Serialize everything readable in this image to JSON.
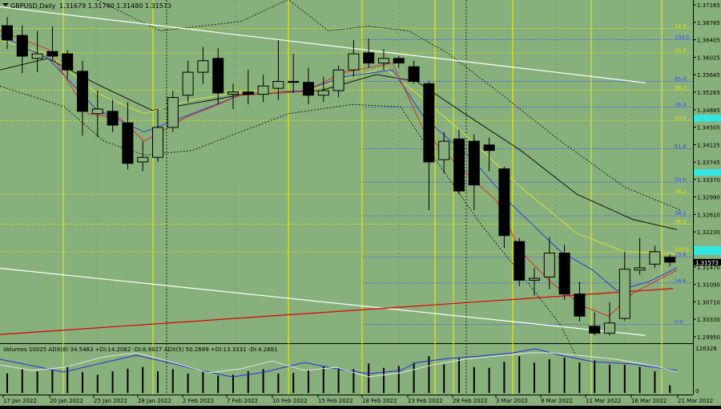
{
  "header": {
    "symbol_label": "GBPUSD,Daily",
    "ohlc": "1.31679 1.31740 1.31480 1.31573"
  },
  "volume_panel": {
    "label": "Volumes 10025 ADX(8) 34.5483 +DI:14.2082 -DI:8.9827 ADX(5) 50.2689 +DI:13.3331 -DI:4.2681",
    "scale_top": "128328",
    "scale_bottom": "0"
  },
  "chart_data": {
    "type": "candlestick",
    "title": "GBPUSD,Daily",
    "price_range": [
      1.2955,
      1.3728
    ],
    "price_ticks": [
      "1.37165",
      "1.36785",
      "1.36405",
      "1.36025",
      "1.35645",
      "1.35265",
      "1.34885",
      "1.34505",
      "1.34125",
      "1.33745",
      "1.33370",
      "1.32990",
      "1.32610",
      "1.32230",
      "1.31850",
      "1.31470",
      "1.31090",
      "1.30710",
      "1.30330",
      "1.29950"
    ],
    "current_price": "1.31573",
    "date_labels": [
      "17 Jan 2022",
      "20 Jan 2022",
      "25 Jan 2022",
      "28 Jan 2022",
      "2 Feb 2022",
      "7 Feb 2022",
      "10 Feb 2022",
      "15 Feb 2022",
      "18 Feb 2022",
      "23 Feb 2022",
      "28 Feb 2022",
      "3 Mar 2022",
      "8 Mar 2022",
      "11 Mar 2022",
      "16 Mar 2022",
      "21 Mar 2022"
    ],
    "candles": [
      {
        "o": 1.3671,
        "h": 1.369,
        "l": 1.362,
        "c": 1.364
      },
      {
        "o": 1.365,
        "h": 1.3672,
        "l": 1.3568,
        "c": 1.3605
      },
      {
        "o": 1.36,
        "h": 1.366,
        "l": 1.357,
        "c": 1.361
      },
      {
        "o": 1.3615,
        "h": 1.367,
        "l": 1.3595,
        "c": 1.3605
      },
      {
        "o": 1.361,
        "h": 1.3618,
        "l": 1.3558,
        "c": 1.3575
      },
      {
        "o": 1.3572,
        "h": 1.3595,
        "l": 1.3432,
        "c": 1.3485
      },
      {
        "o": 1.348,
        "h": 1.353,
        "l": 1.343,
        "c": 1.349
      },
      {
        "o": 1.3485,
        "h": 1.351,
        "l": 1.344,
        "c": 1.3455
      },
      {
        "o": 1.346,
        "h": 1.3505,
        "l": 1.3359,
        "c": 1.3372
      },
      {
        "o": 1.3375,
        "h": 1.342,
        "l": 1.3355,
        "c": 1.3385
      },
      {
        "o": 1.3385,
        "h": 1.349,
        "l": 1.3375,
        "c": 1.345
      },
      {
        "o": 1.345,
        "h": 1.353,
        "l": 1.344,
        "c": 1.3515
      },
      {
        "o": 1.352,
        "h": 1.3595,
        "l": 1.3505,
        "c": 1.357
      },
      {
        "o": 1.357,
        "h": 1.3625,
        "l": 1.3545,
        "c": 1.3595
      },
      {
        "o": 1.36,
        "h": 1.3622,
        "l": 1.35,
        "c": 1.3525
      },
      {
        "o": 1.3522,
        "h": 1.3545,
        "l": 1.349,
        "c": 1.3527
      },
      {
        "o": 1.3527,
        "h": 1.3575,
        "l": 1.35,
        "c": 1.3522
      },
      {
        "o": 1.3522,
        "h": 1.3565,
        "l": 1.3505,
        "c": 1.354
      },
      {
        "o": 1.3535,
        "h": 1.364,
        "l": 1.351,
        "c": 1.355
      },
      {
        "o": 1.355,
        "h": 1.361,
        "l": 1.3525,
        "c": 1.3548
      },
      {
        "o": 1.3548,
        "h": 1.358,
        "l": 1.35,
        "c": 1.352
      },
      {
        "o": 1.352,
        "h": 1.356,
        "l": 1.3505,
        "c": 1.353
      },
      {
        "o": 1.353,
        "h": 1.3585,
        "l": 1.3515,
        "c": 1.3575
      },
      {
        "o": 1.3575,
        "h": 1.364,
        "l": 1.356,
        "c": 1.361
      },
      {
        "o": 1.3612,
        "h": 1.3643,
        "l": 1.358,
        "c": 1.359
      },
      {
        "o": 1.359,
        "h": 1.362,
        "l": 1.3575,
        "c": 1.36
      },
      {
        "o": 1.36,
        "h": 1.3605,
        "l": 1.358,
        "c": 1.359
      },
      {
        "o": 1.3582,
        "h": 1.3595,
        "l": 1.3545,
        "c": 1.355
      },
      {
        "o": 1.3545,
        "h": 1.355,
        "l": 1.327,
        "c": 1.3375
      },
      {
        "o": 1.338,
        "h": 1.344,
        "l": 1.335,
        "c": 1.342
      },
      {
        "o": 1.3425,
        "h": 1.3445,
        "l": 1.3305,
        "c": 1.3312
      },
      {
        "o": 1.342,
        "h": 1.3435,
        "l": 1.327,
        "c": 1.3325
      },
      {
        "o": 1.3412,
        "h": 1.3428,
        "l": 1.3355,
        "c": 1.34
      },
      {
        "o": 1.336,
        "h": 1.3365,
        "l": 1.3188,
        "c": 1.3215
      },
      {
        "o": 1.3202,
        "h": 1.321,
        "l": 1.3105,
        "c": 1.3118
      },
      {
        "o": 1.3118,
        "h": 1.3145,
        "l": 1.3085,
        "c": 1.3122
      },
      {
        "o": 1.3125,
        "h": 1.3212,
        "l": 1.3098,
        "c": 1.3177
      },
      {
        "o": 1.3177,
        "h": 1.3195,
        "l": 1.3075,
        "c": 1.3088
      },
      {
        "o": 1.3088,
        "h": 1.3115,
        "l": 1.3028,
        "c": 1.304
      },
      {
        "o": 1.3018,
        "h": 1.3048,
        "l": 1.2998,
        "c": 1.3003
      },
      {
        "o": 1.3003,
        "h": 1.307,
        "l": 1.2998,
        "c": 1.3025
      },
      {
        "o": 1.3035,
        "h": 1.318,
        "l": 1.303,
        "c": 1.3142
      },
      {
        "o": 1.314,
        "h": 1.321,
        "l": 1.313,
        "c": 1.3145
      },
      {
        "o": 1.3153,
        "h": 1.3193,
        "l": 1.3145,
        "c": 1.318
      },
      {
        "o": 1.3168,
        "h": 1.3174,
        "l": 1.3148,
        "c": 1.31573
      }
    ],
    "fib_levels": [
      {
        "label": "100.0",
        "price": 1.3641,
        "color": "#3a44ff"
      },
      {
        "label": "85.4",
        "price": 1.355,
        "color": "#3a44ff"
      },
      {
        "label": "76.4",
        "price": 1.3494,
        "color": "#3a44ff"
      },
      {
        "label": "61.8",
        "price": 1.3404,
        "color": "#3a44ff"
      },
      {
        "label": "50.0",
        "price": 1.3331,
        "color": "#3a44ff"
      },
      {
        "label": "38.2",
        "price": 1.3258,
        "color": "#3a44ff"
      },
      {
        "label": "23.6",
        "price": 1.3168,
        "color": "#3a44ff"
      },
      {
        "label": "14.6",
        "price": 1.3112,
        "color": "#3a44ff"
      },
      {
        "label": "0.0",
        "price": 1.3022,
        "color": "#3a44ff"
      },
      {
        "label": "14.6",
        "price": 1.3665,
        "color": "#e6e600"
      },
      {
        "label": "23.6",
        "price": 1.3612,
        "color": "#e6e600"
      },
      {
        "label": "38.2",
        "price": 1.3531,
        "color": "#e6e600"
      },
      {
        "label": "50.0",
        "price": 1.3465,
        "color": "#e6e600"
      },
      {
        "label": "38.2",
        "price": 1.3305,
        "color": "#e6e600"
      },
      {
        "label": "38.2",
        "price": 1.324,
        "color": "#e6e600"
      },
      {
        "label": "100.0",
        "price": 1.318,
        "color": "#e6e600"
      }
    ],
    "cyan_markers": [
      1.3185,
      1.347,
      1.3352,
      1.318
    ],
    "trendlines": [
      {
        "color": "#ffffff",
        "from": [
          0,
          1.3712
        ],
        "to": [
          806,
          1.3547
        ]
      },
      {
        "color": "#ffffff",
        "from": [
          0,
          1.3144
        ],
        "to": [
          806,
          1.2998
        ]
      },
      {
        "color": "#e00000",
        "from": [
          0,
          1.3
        ],
        "to": [
          840,
          1.31
        ]
      }
    ],
    "volumes": [
      0.45,
      0.55,
      0.5,
      0.52,
      0.6,
      0.48,
      0.42,
      0.5,
      0.56,
      0.6,
      0.5,
      0.55,
      0.45,
      0.5,
      0.4,
      0.42,
      0.5,
      0.55,
      0.45,
      0.46,
      0.52,
      0.62,
      0.58,
      0.55,
      0.68,
      0.58,
      0.62,
      0.7,
      0.85,
      0.66,
      0.8,
      0.6,
      0.58,
      0.72,
      0.85,
      0.7,
      0.78,
      0.82,
      0.7,
      0.75,
      0.65,
      0.65,
      0.6,
      0.5,
      0.18
    ],
    "grid": true
  }
}
